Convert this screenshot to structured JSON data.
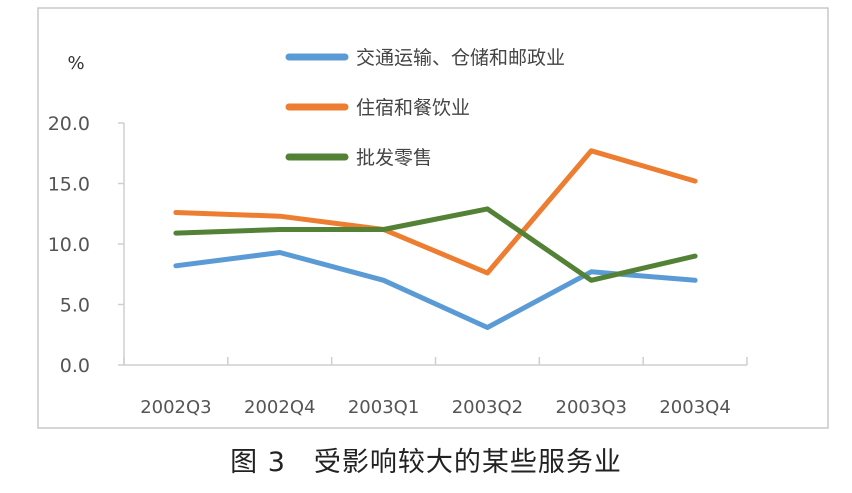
{
  "caption": "图 3　受影响较大的某些服务业",
  "chart_data": {
    "type": "line",
    "unit_label": "%",
    "categories": [
      "2002Q3",
      "2002Q4",
      "2003Q1",
      "2003Q2",
      "2003Q3",
      "2003Q4"
    ],
    "ylim": [
      0,
      20
    ],
    "yticks": [
      0,
      5,
      10,
      15,
      20
    ],
    "ytick_labels": [
      "0.0",
      "5.0",
      "10.0",
      "15.0",
      "20.0"
    ],
    "grid": false,
    "legend_position": "top-right",
    "series": [
      {
        "name": "交通运输、仓储和邮政业",
        "color": "#5B9BD5",
        "values": [
          8.2,
          9.3,
          7.0,
          3.1,
          7.7,
          7.0
        ]
      },
      {
        "name": "住宿和餐饮业",
        "color": "#ED7D31",
        "values": [
          12.6,
          12.3,
          11.2,
          7.6,
          17.7,
          15.2
        ]
      },
      {
        "name": "批发零售",
        "color": "#538135",
        "values": [
          10.9,
          11.2,
          11.2,
          12.9,
          7.0,
          9.0
        ]
      }
    ]
  }
}
